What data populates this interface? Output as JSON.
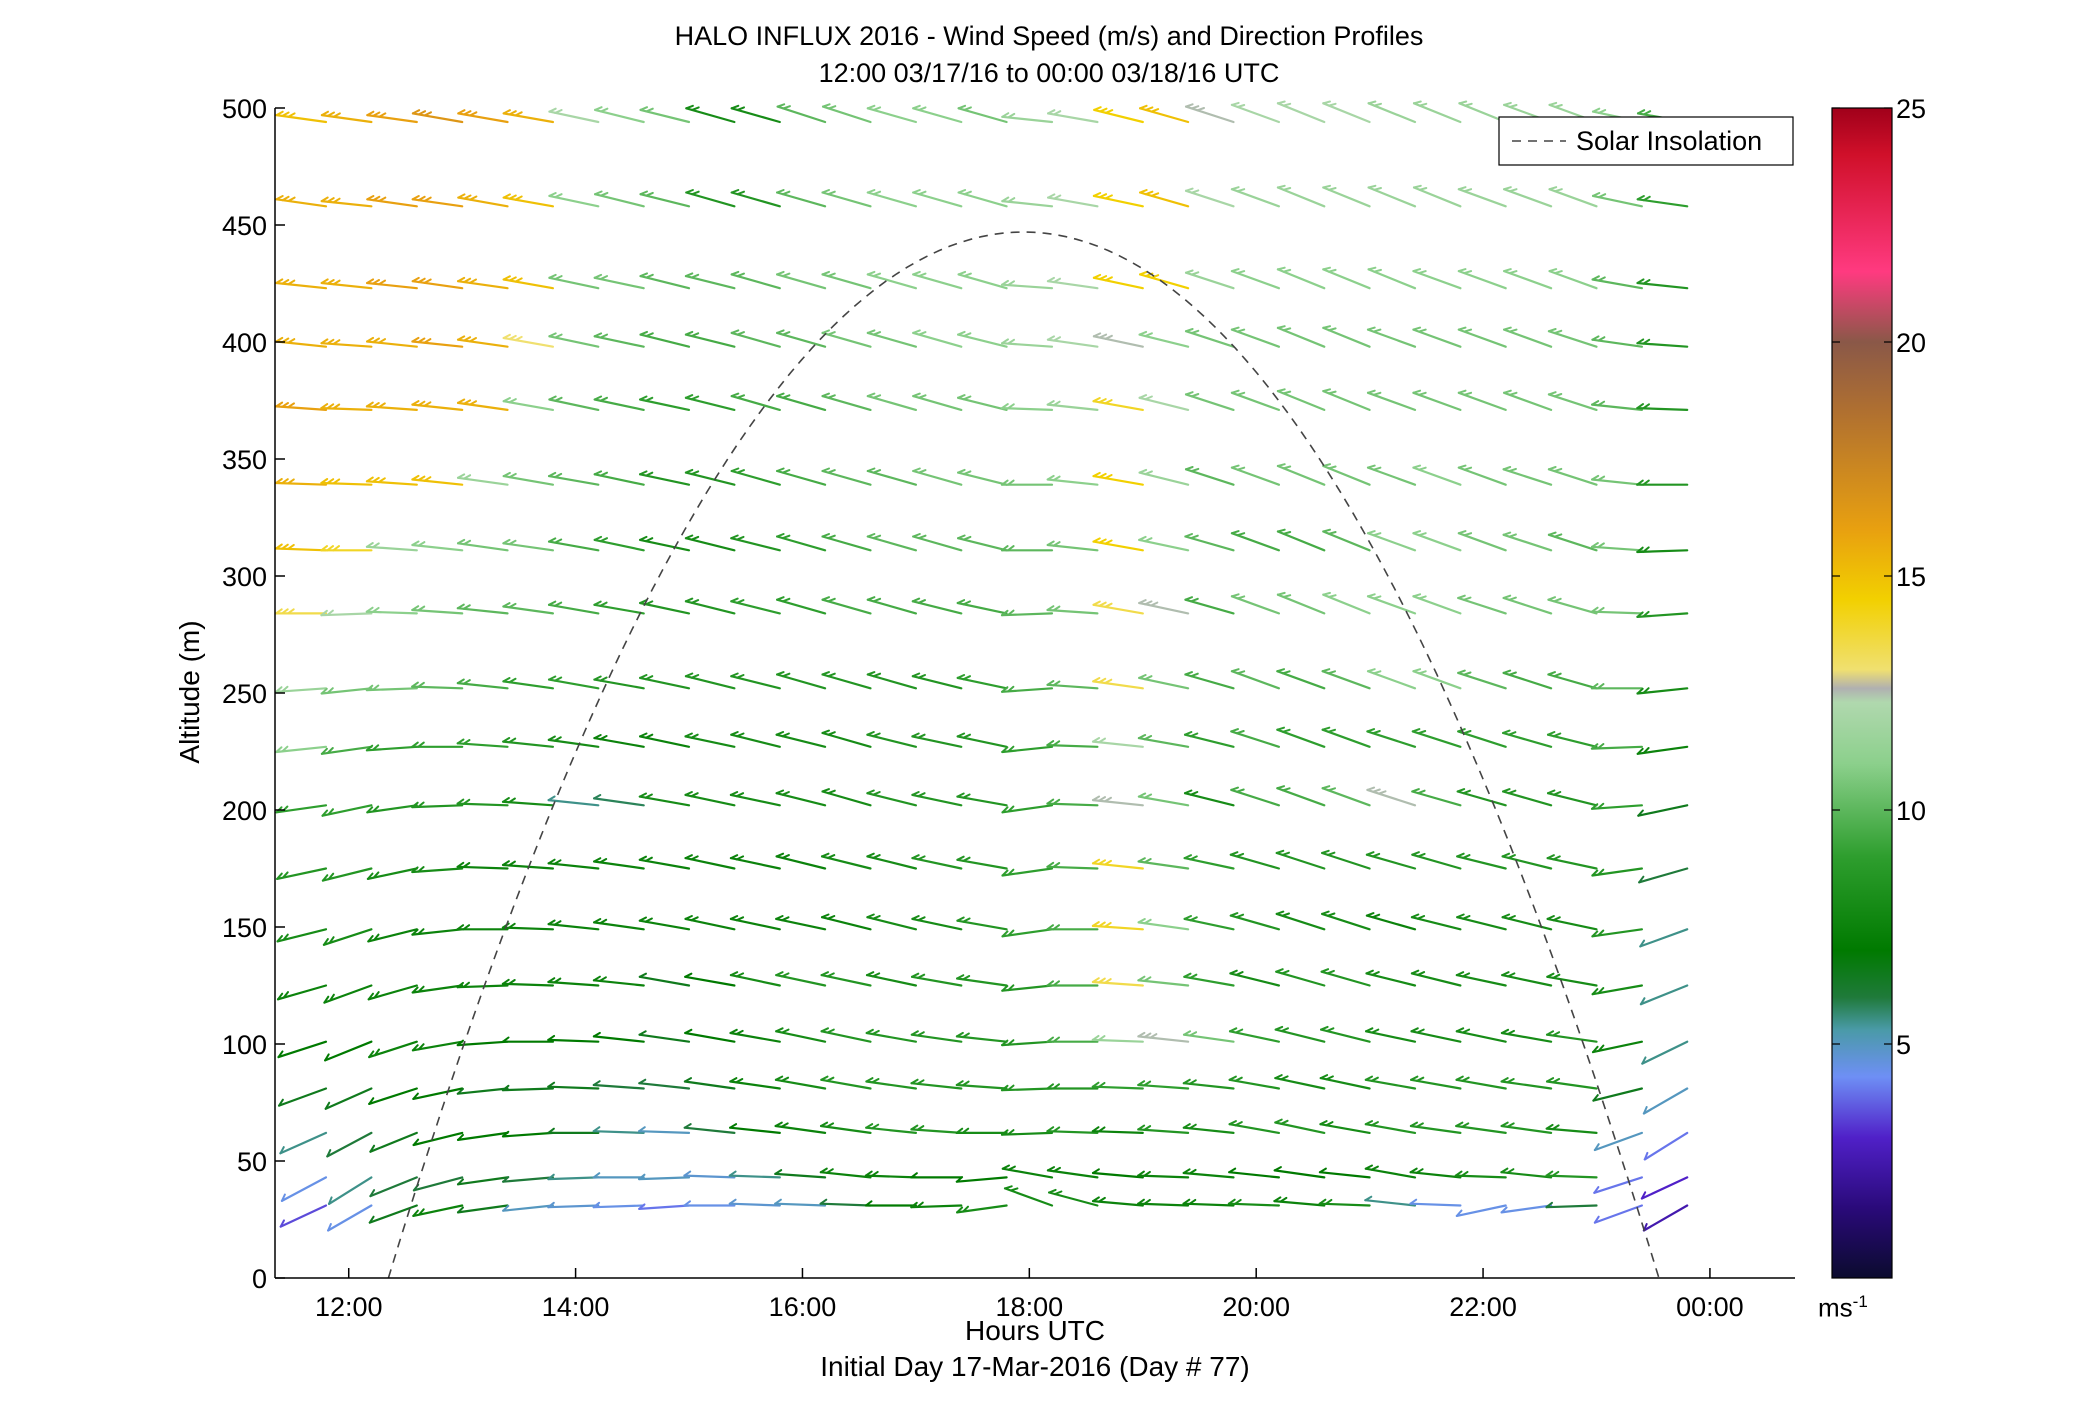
{
  "chart_data": {
    "type": "wind-barb-profile",
    "title": "HALO INFLUX 2016 - Wind Speed (m/s) and Direction Profiles",
    "subtitle": "12:00 03/17/16 to 00:00 03/18/16  UTC",
    "xlabel": "Hours UTC",
    "xlabel2": "Initial Day 17-Mar-2016 (Day # 77)",
    "ylabel": "Altitude (m)",
    "xlim": [
      11.35,
      24.75
    ],
    "ylim": [
      0,
      500
    ],
    "x_ticks": [
      12,
      14,
      16,
      18,
      20,
      22,
      24
    ],
    "x_tick_labels": [
      "12:00",
      "14:00",
      "16:00",
      "18:00",
      "20:00",
      "22:00",
      "00:00"
    ],
    "y_ticks": [
      0,
      50,
      100,
      150,
      200,
      250,
      300,
      350,
      400,
      450,
      500
    ],
    "y_tick_labels": [
      "0",
      "50",
      "100",
      "150",
      "200",
      "250",
      "300",
      "350",
      "400",
      "450",
      "500"
    ],
    "legend": {
      "entries": [
        "Solar Insolation"
      ],
      "position": "top-right"
    },
    "solar_insolation_curve": {
      "style": "dashed",
      "color": "#444444",
      "start_hour": 12.35,
      "end_hour": 23.55,
      "peak_hour": 17.95,
      "peak_altitude_m": 447
    },
    "colorbar": {
      "range": [
        0,
        25
      ],
      "ticks": [
        5,
        10,
        15,
        20,
        25
      ],
      "tick_labels": [
        "5",
        "10",
        "15",
        "20",
        "25"
      ],
      "unit_base": "ms",
      "unit_exp": "-1",
      "color_stops": [
        {
          "v": 0,
          "c": "#0b0b2e"
        },
        {
          "v": 1.5,
          "c": "#2a0a7a"
        },
        {
          "v": 3,
          "c": "#5020c8"
        },
        {
          "v": 4.3,
          "c": "#6e8ff5"
        },
        {
          "v": 5.3,
          "c": "#4a9aa8"
        },
        {
          "v": 6,
          "c": "#1f7a3a"
        },
        {
          "v": 7,
          "c": "#007a00"
        },
        {
          "v": 9,
          "c": "#2e9e2e"
        },
        {
          "v": 11,
          "c": "#8cd08c"
        },
        {
          "v": 12.3,
          "c": "#b0d8ae"
        },
        {
          "v": 12.6,
          "c": "#b0b0b0"
        },
        {
          "v": 13,
          "c": "#f0e070"
        },
        {
          "v": 14.5,
          "c": "#f2d000"
        },
        {
          "v": 16,
          "c": "#e8a010"
        },
        {
          "v": 18.5,
          "c": "#b07030"
        },
        {
          "v": 20,
          "c": "#8a5848"
        },
        {
          "v": 21.5,
          "c": "#ff3a80"
        },
        {
          "v": 24,
          "c": "#d0102a"
        },
        {
          "v": 25,
          "c": "#a0001a"
        }
      ]
    },
    "barb_times": [
      11.8,
      12.2,
      12.6,
      13.0,
      13.4,
      13.8,
      14.2,
      14.6,
      15.0,
      15.4,
      15.8,
      16.2,
      16.6,
      17.0,
      17.4,
      17.8,
      18.2,
      18.6,
      19.0,
      19.4,
      19.8,
      20.2,
      20.6,
      21.0,
      21.4,
      21.8,
      22.2,
      22.6,
      23.0,
      23.4,
      23.8
    ],
    "altitudes_m": [
      31,
      43,
      62,
      81,
      101,
      125,
      149,
      175,
      202,
      227,
      252,
      284,
      311,
      339,
      371,
      398,
      423,
      458,
      494
    ],
    "wind_speed_ms": [
      [
        3.5,
        4.5,
        6.5,
        7.5,
        6.5,
        5.0,
        4.8,
        4.5,
        4.0,
        4.5,
        4.8,
        5.0,
        6.0,
        7.0,
        7.5,
        8.0,
        8.0,
        8.0,
        7.5,
        7.5,
        7.5,
        8.0,
        7.5,
        8.0,
        5.5,
        4.5,
        4.5,
        4.5,
        6.0,
        4.0,
        2.5
      ],
      [
        4.5,
        5.5,
        6.0,
        6.0,
        6.5,
        6.0,
        5.5,
        5.0,
        5.0,
        4.8,
        5.5,
        6.5,
        7.5,
        7.5,
        7.0,
        7.0,
        7.5,
        7.5,
        7.0,
        7.5,
        7.5,
        7.0,
        7.0,
        7.0,
        7.5,
        7.5,
        8.0,
        8.0,
        8.5,
        4.0,
        3.0
      ],
      [
        5.5,
        6.0,
        6.5,
        7.0,
        7.0,
        7.0,
        6.5,
        5.5,
        5.0,
        6.0,
        7.0,
        7.5,
        8.0,
        8.5,
        8.5,
        8.0,
        8.0,
        8.5,
        7.5,
        8.5,
        8.0,
        8.5,
        8.5,
        8.0,
        8.5,
        8.5,
        8.5,
        8.5,
        8.0,
        5.0,
        4.0
      ],
      [
        6.5,
        6.5,
        7.0,
        7.0,
        6.5,
        6.5,
        6.5,
        6.0,
        6.0,
        6.5,
        7.5,
        8.0,
        8.5,
        8.5,
        8.5,
        8.5,
        8.5,
        8.5,
        9.0,
        9.0,
        8.5,
        8.5,
        8.0,
        8.0,
        8.5,
        8.5,
        8.5,
        8.5,
        8.5,
        6.5,
        5.0
      ],
      [
        7.0,
        7.0,
        7.5,
        7.5,
        7.0,
        7.0,
        7.0,
        7.0,
        6.5,
        7.0,
        7.5,
        8.0,
        8.5,
        8.5,
        8.5,
        8.5,
        8.5,
        9.5,
        11.5,
        12.5,
        10.5,
        9.0,
        8.5,
        8.5,
        8.0,
        8.0,
        8.0,
        8.0,
        8.5,
        7.5,
        5.5
      ],
      [
        7.5,
        7.5,
        7.5,
        7.5,
        7.5,
        7.5,
        7.5,
        7.5,
        6.5,
        7.0,
        8.0,
        8.5,
        8.5,
        8.0,
        8.5,
        8.5,
        8.5,
        9.5,
        13.5,
        10.5,
        9.0,
        8.0,
        8.5,
        8.5,
        8.0,
        8.0,
        8.0,
        8.0,
        8.0,
        8.0,
        5.5
      ],
      [
        8.0,
        8.0,
        7.5,
        7.5,
        7.5,
        7.5,
        7.5,
        7.5,
        7.5,
        7.5,
        7.5,
        7.5,
        7.5,
        8.0,
        8.0,
        8.5,
        9.0,
        9.5,
        14.0,
        11.0,
        9.0,
        8.5,
        8.0,
        8.0,
        7.5,
        8.0,
        8.0,
        8.0,
        8.0,
        8.5,
        5.5
      ],
      [
        8.5,
        8.5,
        8.0,
        8.0,
        7.5,
        7.5,
        7.5,
        7.5,
        7.5,
        7.5,
        7.5,
        7.5,
        8.0,
        8.0,
        8.5,
        8.5,
        9.0,
        9.5,
        14.0,
        10.0,
        9.0,
        8.5,
        8.5,
        8.5,
        8.5,
        8.5,
        8.5,
        8.5,
        8.5,
        8.5,
        6.0
      ],
      [
        9.0,
        9.0,
        8.5,
        8.5,
        8.5,
        8.0,
        5.5,
        5.8,
        8.0,
        8.0,
        8.0,
        8.0,
        8.0,
        8.5,
        8.5,
        8.5,
        9.0,
        9.5,
        12.5,
        10.5,
        8.0,
        9.5,
        9.5,
        10.0,
        12.5,
        9.5,
        8.5,
        8.5,
        8.5,
        9.0,
        6.5
      ],
      [
        11.0,
        9.5,
        9.0,
        9.0,
        9.0,
        8.5,
        8.0,
        7.5,
        7.5,
        8.0,
        8.0,
        8.0,
        8.0,
        8.5,
        8.5,
        8.5,
        9.0,
        9.5,
        12.0,
        10.0,
        9.0,
        9.5,
        9.0,
        9.0,
        9.0,
        9.0,
        9.0,
        9.0,
        9.0,
        9.5,
        7.5
      ],
      [
        11.5,
        10.5,
        10.5,
        10.0,
        9.5,
        9.0,
        9.0,
        8.5,
        8.5,
        8.5,
        8.5,
        8.5,
        8.5,
        8.5,
        8.5,
        9.0,
        9.5,
        10.0,
        13.5,
        10.5,
        9.5,
        10.0,
        9.5,
        10.0,
        11.0,
        11.0,
        10.0,
        9.5,
        9.5,
        10.0,
        8.0
      ],
      [
        13.5,
        12.0,
        11.0,
        10.5,
        10.0,
        10.0,
        9.5,
        9.0,
        8.5,
        8.5,
        9.0,
        9.0,
        9.5,
        9.5,
        9.5,
        9.5,
        10.0,
        10.5,
        13.5,
        12.5,
        9.5,
        10.5,
        10.5,
        11.0,
        11.0,
        11.0,
        10.5,
        10.5,
        10.5,
        10.5,
        8.5
      ],
      [
        15.0,
        14.0,
        11.5,
        11.0,
        10.5,
        10.5,
        9.5,
        9.0,
        8.0,
        8.0,
        8.5,
        9.0,
        9.5,
        10.0,
        10.0,
        10.0,
        10.0,
        10.5,
        14.5,
        11.0,
        10.0,
        9.5,
        9.5,
        10.0,
        11.0,
        11.0,
        10.5,
        10.5,
        10.0,
        10.5,
        8.0
      ],
      [
        15.5,
        15.0,
        15.0,
        15.0,
        11.5,
        10.5,
        10.0,
        9.5,
        8.5,
        8.5,
        9.0,
        9.5,
        10.0,
        10.0,
        10.5,
        10.5,
        10.5,
        11.0,
        14.5,
        11.5,
        10.0,
        10.5,
        10.5,
        10.5,
        10.5,
        11.0,
        10.5,
        10.5,
        10.5,
        10.5,
        8.5
      ],
      [
        16.0,
        15.5,
        15.5,
        15.5,
        15.5,
        11.0,
        10.0,
        9.5,
        9.0,
        9.0,
        9.5,
        9.5,
        10.0,
        10.5,
        10.5,
        10.5,
        11.0,
        11.5,
        14.0,
        12.0,
        10.5,
        10.5,
        10.5,
        10.5,
        10.5,
        10.5,
        10.5,
        10.5,
        10.5,
        10.0,
        8.5
      ],
      [
        15.5,
        15.5,
        15.5,
        16.0,
        15.5,
        13.0,
        10.5,
        10.0,
        9.5,
        9.5,
        10.0,
        10.0,
        10.5,
        10.5,
        11.0,
        11.0,
        11.5,
        12.0,
        12.5,
        11.0,
        10.5,
        10.5,
        10.5,
        10.5,
        10.5,
        10.5,
        10.5,
        10.5,
        10.5,
        10.0,
        8.5
      ],
      [
        15.5,
        15.5,
        16.0,
        16.0,
        15.5,
        15.0,
        10.5,
        10.5,
        10.0,
        10.0,
        10.0,
        10.5,
        10.5,
        11.0,
        11.0,
        11.0,
        11.5,
        12.0,
        14.5,
        14.5,
        11.5,
        11.0,
        11.0,
        11.0,
        11.0,
        11.0,
        11.0,
        11.0,
        11.0,
        10.0,
        8.5
      ],
      [
        15.5,
        15.5,
        16.0,
        16.0,
        15.5,
        15.0,
        11.0,
        10.5,
        10.0,
        8.5,
        8.5,
        10.0,
        10.5,
        11.0,
        11.0,
        11.0,
        11.5,
        12.0,
        14.5,
        15.0,
        12.0,
        11.5,
        11.5,
        11.5,
        11.5,
        11.5,
        11.5,
        11.5,
        11.5,
        10.5,
        9.0
      ],
      [
        15.0,
        15.5,
        16.0,
        16.5,
        16.0,
        15.5,
        12.0,
        11.0,
        10.5,
        8.0,
        8.0,
        10.0,
        10.5,
        11.0,
        11.0,
        10.5,
        11.5,
        12.0,
        14.5,
        15.0,
        12.5,
        12.0,
        12.0,
        12.0,
        11.5,
        11.5,
        11.5,
        11.5,
        11.5,
        11.0,
        9.5
      ]
    ],
    "wind_direction_deg": [
      [
        245,
        240,
        250,
        258,
        262,
        264,
        268,
        268,
        266,
        270,
        272,
        272,
        272,
        270,
        268,
        262,
        290,
        285,
        275,
        272,
        272,
        272,
        275,
        272,
        276,
        272,
        258,
        262,
        268,
        250,
        240
      ],
      [
        242,
        238,
        248,
        255,
        262,
        265,
        268,
        270,
        268,
        272,
        272,
        274,
        276,
        272,
        270,
        265,
        280,
        278,
        275,
        272,
        275,
        276,
        278,
        276,
        280,
        276,
        272,
        276,
        272,
        252,
        245
      ],
      [
        246,
        242,
        248,
        256,
        262,
        266,
        270,
        272,
        272,
        276,
        276,
        278,
        278,
        276,
        274,
        270,
        268,
        272,
        272,
        274,
        276,
        280,
        282,
        280,
        280,
        278,
        278,
        278,
        275,
        250,
        238
      ],
      [
        250,
        246,
        252,
        258,
        264,
        268,
        272,
        274,
        276,
        278,
        278,
        280,
        280,
        278,
        276,
        274,
        268,
        270,
        272,
        274,
        276,
        280,
        282,
        282,
        280,
        280,
        280,
        278,
        278,
        256,
        240
      ],
      [
        252,
        248,
        252,
        260,
        266,
        270,
        272,
        276,
        278,
        280,
        280,
        282,
        282,
        280,
        278,
        276,
        266,
        270,
        272,
        276,
        278,
        282,
        284,
        284,
        282,
        282,
        282,
        280,
        278,
        258,
        244
      ],
      [
        254,
        250,
        254,
        262,
        268,
        272,
        274,
        276,
        280,
        280,
        282,
        282,
        282,
        282,
        280,
        278,
        264,
        270,
        274,
        276,
        280,
        284,
        286,
        286,
        284,
        284,
        282,
        282,
        280,
        260,
        248
      ],
      [
        256,
        252,
        256,
        264,
        270,
        272,
        276,
        278,
        280,
        282,
        282,
        282,
        284,
        284,
        282,
        280,
        262,
        270,
        274,
        278,
        282,
        286,
        288,
        288,
        286,
        284,
        284,
        284,
        282,
        262,
        250
      ],
      [
        258,
        256,
        258,
        266,
        272,
        274,
        276,
        278,
        280,
        282,
        282,
        284,
        284,
        284,
        282,
        280,
        262,
        272,
        276,
        278,
        282,
        286,
        288,
        288,
        286,
        286,
        284,
        284,
        282,
        262,
        254
      ],
      [
        262,
        258,
        262,
        268,
        272,
        274,
        276,
        278,
        280,
        282,
        282,
        284,
        286,
        284,
        282,
        280,
        262,
        272,
        276,
        280,
        284,
        288,
        290,
        290,
        288,
        286,
        286,
        286,
        284,
        266,
        258
      ],
      [
        264,
        262,
        266,
        270,
        274,
        276,
        278,
        280,
        282,
        282,
        284,
        284,
        286,
        284,
        282,
        282,
        264,
        272,
        276,
        280,
        284,
        288,
        290,
        290,
        288,
        288,
        288,
        286,
        284,
        268,
        262
      ],
      [
        266,
        264,
        268,
        272,
        276,
        278,
        280,
        280,
        282,
        284,
        284,
        286,
        286,
        286,
        284,
        282,
        266,
        274,
        278,
        282,
        286,
        290,
        290,
        290,
        290,
        290,
        288,
        288,
        286,
        270,
        264
      ],
      [
        270,
        268,
        272,
        274,
        276,
        278,
        280,
        280,
        282,
        284,
        284,
        286,
        286,
        286,
        284,
        282,
        268,
        274,
        280,
        282,
        286,
        290,
        292,
        292,
        290,
        290,
        288,
        288,
        286,
        272,
        266
      ],
      [
        272,
        270,
        274,
        276,
        278,
        278,
        280,
        282,
        282,
        284,
        284,
        286,
        286,
        286,
        286,
        284,
        270,
        276,
        280,
        282,
        286,
        290,
        292,
        292,
        290,
        290,
        290,
        288,
        288,
        274,
        268
      ],
      [
        272,
        272,
        274,
        276,
        278,
        280,
        280,
        282,
        282,
        284,
        286,
        286,
        286,
        286,
        286,
        284,
        270,
        276,
        280,
        284,
        288,
        290,
        292,
        292,
        290,
        290,
        290,
        288,
        288,
        276,
        270
      ],
      [
        274,
        272,
        274,
        276,
        278,
        280,
        282,
        282,
        282,
        284,
        286,
        286,
        286,
        286,
        286,
        284,
        272,
        276,
        280,
        284,
        288,
        290,
        292,
        292,
        290,
        290,
        290,
        290,
        288,
        276,
        272
      ],
      [
        276,
        274,
        276,
        276,
        278,
        280,
        282,
        282,
        284,
        284,
        286,
        286,
        286,
        286,
        286,
        284,
        274,
        278,
        282,
        284,
        288,
        290,
        292,
        292,
        290,
        290,
        290,
        290,
        288,
        278,
        274
      ],
      [
        276,
        276,
        276,
        278,
        278,
        280,
        282,
        282,
        284,
        284,
        286,
        286,
        286,
        286,
        286,
        286,
        274,
        278,
        282,
        286,
        288,
        290,
        292,
        292,
        292,
        290,
        290,
        290,
        290,
        280,
        276
      ],
      [
        278,
        276,
        278,
        278,
        280,
        280,
        282,
        284,
        284,
        286,
        286,
        286,
        286,
        286,
        286,
        286,
        276,
        280,
        282,
        286,
        288,
        290,
        292,
        292,
        292,
        292,
        290,
        290,
        290,
        282,
        278
      ],
      [
        278,
        278,
        278,
        280,
        280,
        280,
        282,
        284,
        284,
        286,
        286,
        288,
        288,
        286,
        286,
        286,
        276,
        280,
        284,
        286,
        288,
        290,
        292,
        292,
        292,
        292,
        292,
        290,
        290,
        282,
        280
      ]
    ]
  }
}
